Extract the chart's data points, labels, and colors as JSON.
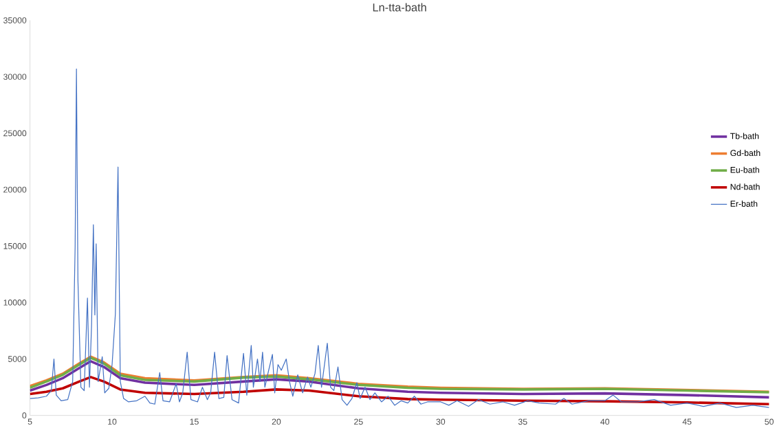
{
  "chart_data": {
    "type": "line",
    "title": "Ln-tta-bath",
    "xlim": [
      5,
      50
    ],
    "xticks": [
      5,
      10,
      15,
      20,
      25,
      30,
      35,
      40,
      45,
      50
    ],
    "ylim": [
      0,
      35000
    ],
    "yticks": [
      0,
      5000,
      10000,
      15000,
      20000,
      25000,
      30000,
      35000
    ],
    "grid": false,
    "legend": "right",
    "marker": "none",
    "series": [
      {
        "name": "Tb-bath",
        "color": "#7030a0",
        "x": [
          5,
          6,
          7,
          8,
          8.7,
          9.5,
          10.5,
          12,
          15,
          18,
          20,
          22,
          25,
          28,
          30,
          35,
          40,
          45,
          50
        ],
        "values": [
          2200,
          2700,
          3300,
          4200,
          4800,
          4300,
          3300,
          2900,
          2700,
          3000,
          3200,
          3000,
          2400,
          2100,
          2000,
          1900,
          1950,
          1800,
          1600
        ]
      },
      {
        "name": "Gd-bath",
        "color": "#ed7d31",
        "x": [
          5,
          6,
          7,
          8,
          8.7,
          9.5,
          10.5,
          12,
          15,
          18,
          20,
          22,
          25,
          28,
          30,
          35,
          40,
          45,
          50
        ],
        "values": [
          2600,
          3100,
          3700,
          4600,
          5200,
          4700,
          3700,
          3300,
          3100,
          3400,
          3550,
          3300,
          2800,
          2550,
          2450,
          2350,
          2400,
          2250,
          2100
        ]
      },
      {
        "name": "Eu-bath",
        "color": "#70ad47",
        "x": [
          5,
          6,
          7,
          8,
          8.7,
          9.5,
          10.5,
          12,
          15,
          18,
          20,
          22,
          25,
          28,
          30,
          35,
          40,
          45,
          50
        ],
        "values": [
          2450,
          3000,
          3600,
          4500,
          5100,
          4600,
          3550,
          3150,
          3000,
          3350,
          3450,
          3200,
          2700,
          2450,
          2350,
          2300,
          2350,
          2200,
          2050
        ]
      },
      {
        "name": "Nd-bath",
        "color": "#c00000",
        "x": [
          5,
          6,
          7,
          8,
          8.7,
          9.5,
          10.5,
          12,
          15,
          18,
          20,
          22,
          25,
          28,
          30,
          35,
          40,
          45,
          50
        ],
        "values": [
          1900,
          2100,
          2400,
          3000,
          3400,
          3000,
          2300,
          2000,
          1900,
          2100,
          2300,
          2200,
          1700,
          1450,
          1400,
          1300,
          1250,
          1150,
          1000
        ]
      },
      {
        "name": "Er-bath",
        "color": "#4472c4",
        "x": [
          5,
          5.5,
          6,
          6.3,
          6.46,
          6.6,
          6.9,
          7.3,
          7.6,
          7.75,
          7.83,
          7.92,
          8.1,
          8.3,
          8.5,
          8.62,
          8.75,
          8.86,
          8.95,
          9.03,
          9.15,
          9.4,
          9.55,
          9.8,
          10.0,
          10.2,
          10.36,
          10.5,
          10.7,
          11,
          11.5,
          12,
          12.3,
          12.6,
          12.9,
          13.1,
          13.5,
          13.9,
          14.1,
          14.3,
          14.57,
          14.8,
          15.2,
          15.5,
          15.8,
          16.0,
          16.24,
          16.5,
          16.8,
          17.0,
          17.3,
          17.7,
          18.0,
          18.2,
          18.47,
          18.6,
          18.85,
          19.0,
          19.16,
          19.3,
          19.5,
          19.76,
          19.9,
          20.1,
          20.3,
          20.6,
          20.8,
          21.0,
          21.3,
          21.6,
          21.9,
          22.1,
          22.35,
          22.55,
          22.75,
          23.1,
          23.3,
          23.5,
          23.75,
          24.0,
          24.3,
          24.6,
          24.9,
          25.1,
          25.4,
          25.7,
          26,
          26.4,
          26.8,
          27.2,
          27.6,
          28,
          28.4,
          28.8,
          29.2,
          30,
          30.5,
          31,
          31.7,
          32.3,
          33,
          33.8,
          34.5,
          35.3,
          36,
          37,
          37.5,
          38,
          39,
          40,
          40.5,
          41,
          42,
          43,
          44,
          45,
          46,
          47,
          48,
          49,
          50
        ],
        "values": [
          1500,
          1550,
          1700,
          2200,
          5000,
          1800,
          1300,
          1400,
          3000,
          15000,
          30700,
          12000,
          2500,
          2200,
          10400,
          2500,
          8000,
          16900,
          8900,
          15200,
          3000,
          5200,
          2000,
          2400,
          4500,
          9000,
          22000,
          3000,
          1500,
          1200,
          1300,
          1700,
          1100,
          1000,
          3800,
          1300,
          1200,
          2800,
          1200,
          2000,
          5600,
          1400,
          1200,
          2500,
          1400,
          2000,
          5600,
          1500,
          1600,
          5300,
          1400,
          1100,
          5500,
          1800,
          6200,
          2500,
          5000,
          3000,
          5600,
          2500,
          3800,
          5400,
          2000,
          4500,
          4000,
          5000,
          3000,
          1700,
          3600,
          2000,
          3400,
          2500,
          3700,
          6200,
          2500,
          6400,
          2500,
          2200,
          4300,
          1400,
          900,
          1500,
          2900,
          1500,
          2500,
          1400,
          2000,
          1200,
          1700,
          900,
          1300,
          1100,
          1700,
          1000,
          1200,
          1200,
          900,
          1300,
          800,
          1400,
          1000,
          1200,
          900,
          1300,
          1100,
          1000,
          1500,
          1000,
          1300,
          1300,
          1800,
          1200,
          1200,
          1400,
          900,
          1100,
          800,
          1100,
          700,
          900,
          700
        ]
      }
    ]
  }
}
